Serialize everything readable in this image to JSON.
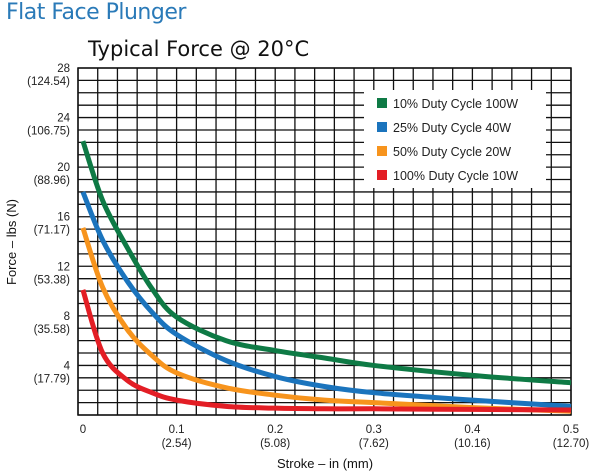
{
  "page_title": "Flat Face Plunger",
  "chart_data": {
    "type": "line",
    "title": "Typical Force @ 20°C",
    "xlabel": "Stroke – in (mm)",
    "ylabel": "Force – lbs (N)",
    "xlim": [
      0,
      0.5
    ],
    "ylim": [
      0,
      28
    ],
    "grid": true,
    "grid_x_step": 0.02,
    "grid_y_step": 1,
    "legend_placement": "top-right",
    "x_ticks": [
      {
        "value": 0,
        "label": "0",
        "sub": ""
      },
      {
        "value": 0.1,
        "label": "0.1",
        "sub": "(2.54)"
      },
      {
        "value": 0.2,
        "label": "0.2",
        "sub": "(5.08)"
      },
      {
        "value": 0.3,
        "label": "0.3",
        "sub": "(7.62)"
      },
      {
        "value": 0.4,
        "label": "0.4",
        "sub": "(10.16)"
      },
      {
        "value": 0.5,
        "label": "0.5",
        "sub": "(12.70)"
      }
    ],
    "y_ticks": [
      {
        "value": 4,
        "label": "4",
        "sub": "(17.79)"
      },
      {
        "value": 8,
        "label": "8",
        "sub": "(35.58)"
      },
      {
        "value": 12,
        "label": "12",
        "sub": "(53.38)"
      },
      {
        "value": 16,
        "label": "16",
        "sub": "(71.17)"
      },
      {
        "value": 20,
        "label": "20",
        "sub": "(88.96)"
      },
      {
        "value": 24,
        "label": "24",
        "sub": "(106.75)"
      },
      {
        "value": 28,
        "label": "28",
        "sub": "(124.54)"
      }
    ],
    "series": [
      {
        "name": "10% Duty Cycle 100W",
        "color": "#0e7a45",
        "x": [
          0.005,
          0.025,
          0.05,
          0.075,
          0.1,
          0.15,
          0.2,
          0.25,
          0.3,
          0.4,
          0.5
        ],
        "y": [
          22.1,
          17.3,
          13.5,
          10.2,
          7.9,
          6.0,
          5.2,
          4.6,
          4.0,
          3.2,
          2.6
        ]
      },
      {
        "name": "25% Duty Cycle 40W",
        "color": "#1b74bd",
        "x": [
          0.005,
          0.025,
          0.05,
          0.075,
          0.1,
          0.15,
          0.2,
          0.25,
          0.3,
          0.4,
          0.5
        ],
        "y": [
          18.0,
          14.1,
          10.8,
          8.3,
          6.5,
          4.4,
          3.1,
          2.3,
          1.8,
          1.2,
          0.7
        ]
      },
      {
        "name": "50% Duty Cycle 20W",
        "color": "#f7941d",
        "x": [
          0.005,
          0.025,
          0.05,
          0.075,
          0.1,
          0.15,
          0.2,
          0.25,
          0.3,
          0.4,
          0.5
        ],
        "y": [
          15.1,
          10.3,
          6.9,
          4.8,
          3.4,
          2.2,
          1.6,
          1.2,
          1.0,
          0.6,
          0.3
        ]
      },
      {
        "name": "100% Duty Cycle 10W",
        "color": "#e31e25",
        "x": [
          0.005,
          0.025,
          0.05,
          0.075,
          0.1,
          0.15,
          0.2,
          0.25,
          0.3,
          0.4,
          0.5
        ],
        "y": [
          10.1,
          5.0,
          2.8,
          1.8,
          1.2,
          0.7,
          0.55,
          0.5,
          0.5,
          0.45,
          0.4
        ]
      }
    ]
  }
}
